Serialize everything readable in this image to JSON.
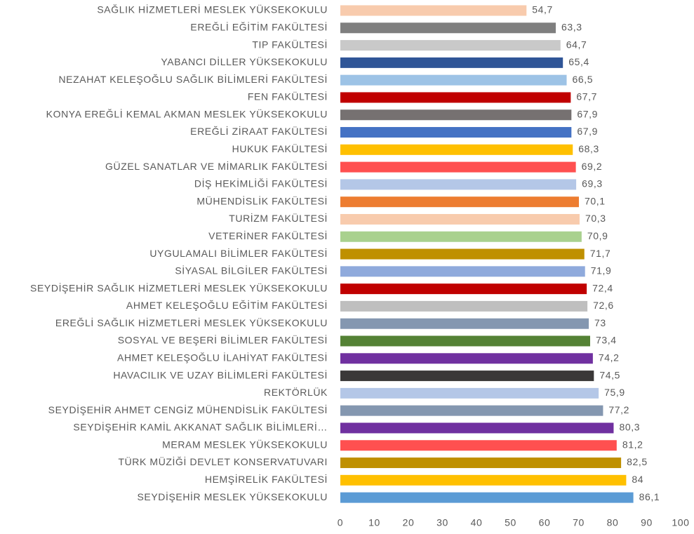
{
  "chart_data": {
    "type": "barh",
    "categories": [
      "SAĞLIK HİZMETLERİ MESLEK YÜKSEKOKULU",
      "EREĞLİ EĞİTİM FAKÜLTESİ",
      "TIP FAKÜLTESİ",
      "YABANCI DİLLER YÜKSEKOKULU",
      "NEZAHAT KELEŞOĞLU SAĞLIK BİLİMLERİ FAKÜLTESİ",
      "FEN FAKÜLTESİ",
      "KONYA EREĞLİ KEMAL AKMAN MESLEK YÜKSEKOKULU",
      "EREĞLİ ZİRAAT FAKÜLTESİ",
      "HUKUK FAKÜLTESİ",
      "GÜZEL SANATLAR VE MİMARLIK FAKÜLTESİ",
      "DİŞ HEKİMLİĞİ FAKÜLTESİ",
      "MÜHENDİSLİK FAKÜLTESİ",
      "TURİZM FAKÜLTESİ",
      "VETERİNER FAKÜLTESİ",
      "UYGULAMALI BİLİMLER FAKÜLTESİ",
      "SİYASAL BİLGİLER FAKÜLTESİ",
      "SEYDİŞEHİR SAĞLIK HİZMETLERİ MESLEK YÜKSEKOKULU",
      "AHMET KELEŞOĞLU EĞİTİM FAKÜLTESİ",
      "EREĞLİ SAĞLIK HİZMETLERİ MESLEK YÜKSEKOKULU",
      "SOSYAL VE BEŞERİ BİLİMLER FAKÜLTESİ",
      "AHMET KELEŞOĞLU İLAHİYAT FAKÜLTESİ",
      "HAVACILIK VE UZAY BİLİMLERİ FAKÜLTESİ",
      "REKTÖRLÜK",
      "SEYDİŞEHİR AHMET CENGİZ MÜHENDİSLİK FAKÜLTESİ",
      "SEYDİŞEHİR KAMİL AKKANAT SAĞLIK BİLİMLERİ…",
      "MERAM MESLEK YÜKSEKOKULU",
      "TÜRK MÜZİĞİ DEVLET KONSERVATUVARI",
      "HEMŞİRELİK FAKÜLTESİ",
      "SEYDİŞEHİR MESLEK YÜKSEKOKULU"
    ],
    "values": [
      54.7,
      63.3,
      64.7,
      65.4,
      66.5,
      67.7,
      67.9,
      67.9,
      68.3,
      69.2,
      69.3,
      70.1,
      70.3,
      70.9,
      71.7,
      71.9,
      72.4,
      72.6,
      73,
      73.4,
      74.2,
      74.5,
      75.9,
      77.2,
      80.3,
      81.2,
      82.5,
      84,
      86.1
    ],
    "value_labels": [
      "54,7",
      "63,3",
      "64,7",
      "65,4",
      "66,5",
      "67,7",
      "67,9",
      "67,9",
      "68,3",
      "69,2",
      "69,3",
      "70,1",
      "70,3",
      "70,9",
      "71,7",
      "71,9",
      "72,4",
      "72,6",
      "73",
      "73,4",
      "74,2",
      "74,5",
      "75,9",
      "77,2",
      "80,3",
      "81,2",
      "82,5",
      "84",
      "86,1"
    ],
    "colors": [
      "#f8cbad",
      "#7f7f7f",
      "#c9c9c9",
      "#2f5597",
      "#9dc3e6",
      "#c00000",
      "#767171",
      "#4472c4",
      "#ffc000",
      "#ff5050",
      "#b4c7e7",
      "#ed7d31",
      "#f8cbad",
      "#a9d18e",
      "#bf9000",
      "#8faadc",
      "#c00000",
      "#bfbfbf",
      "#8497b0",
      "#548235",
      "#7030a0",
      "#3a3838",
      "#b4c7e7",
      "#8497b0",
      "#7030a0",
      "#ff5050",
      "#bf9000",
      "#ffc000",
      "#5b9bd5"
    ],
    "xlim": [
      0,
      100
    ],
    "xticks": [
      0,
      10,
      20,
      30,
      40,
      50,
      60,
      70,
      80,
      90,
      100
    ],
    "grid": false
  }
}
